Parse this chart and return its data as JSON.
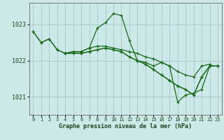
{
  "title": "Graphe pression niveau de la mer (hPa)",
  "background_color": "#cce8e8",
  "grid_color": "#aacccc",
  "line_color": "#1a6b1a",
  "marker_color": "#1a6b1a",
  "tick_color": "#1a4a1a",
  "ylabel_ticks": [
    1021,
    1022,
    1023
  ],
  "xlim": [
    -0.5,
    23.5
  ],
  "ylim": [
    1020.5,
    1023.6
  ],
  "series": [
    {
      "x": [
        0,
        1,
        2,
        3,
        4,
        5,
        6,
        7,
        8,
        9,
        10,
        11,
        12,
        13,
        14,
        15,
        16,
        17,
        18,
        19,
        20,
        21,
        22
      ],
      "y": [
        1022.8,
        1022.5,
        1022.6,
        1022.3,
        1022.2,
        1022.25,
        1022.25,
        1022.35,
        1022.9,
        1023.05,
        1023.3,
        1023.25,
        1022.55,
        1022.0,
        1021.95,
        1021.85,
        1021.95,
        1021.85,
        1021.7,
        1021.6,
        1021.55,
        1021.85,
        1021.9
      ]
    },
    {
      "x": [
        0,
        1,
        2,
        3,
        4,
        5,
        6,
        7,
        8,
        9,
        10,
        11,
        12,
        13,
        14,
        15,
        16,
        17,
        18,
        19,
        20,
        21,
        22,
        23
      ],
      "y": [
        1022.8,
        1022.5,
        1022.6,
        1022.3,
        1022.2,
        1022.25,
        1022.25,
        1022.35,
        1022.4,
        1022.4,
        1022.35,
        1022.3,
        1022.25,
        1022.2,
        1022.1,
        1022.05,
        1021.95,
        1021.85,
        1020.85,
        1021.05,
        1021.1,
        1021.2,
        1021.85,
        1021.85
      ]
    },
    {
      "x": [
        4,
        5,
        6,
        7,
        8,
        9,
        10,
        11,
        12,
        13,
        14,
        15,
        16,
        17,
        18,
        19,
        20,
        21,
        22,
        23
      ],
      "y": [
        1022.2,
        1022.2,
        1022.2,
        1022.25,
        1022.3,
        1022.35,
        1022.3,
        1022.25,
        1022.1,
        1022.0,
        1021.9,
        1021.75,
        1021.6,
        1021.45,
        1021.3,
        1021.2,
        1021.05,
        1021.55,
        1021.85,
        1021.85
      ]
    },
    {
      "x": [
        4,
        5,
        6,
        7,
        8,
        9,
        10,
        11,
        12,
        13,
        14,
        15,
        16,
        17,
        18,
        19,
        20,
        21,
        22,
        23
      ],
      "y": [
        1022.2,
        1022.2,
        1022.2,
        1022.25,
        1022.3,
        1022.35,
        1022.3,
        1022.25,
        1022.1,
        1022.0,
        1021.9,
        1021.75,
        1021.6,
        1021.45,
        1021.3,
        1021.2,
        1021.05,
        1021.55,
        1021.85,
        1021.85
      ]
    }
  ],
  "x_ticks": [
    0,
    1,
    2,
    3,
    4,
    5,
    6,
    7,
    8,
    9,
    10,
    11,
    12,
    13,
    14,
    15,
    16,
    17,
    18,
    19,
    20,
    21,
    22,
    23
  ]
}
